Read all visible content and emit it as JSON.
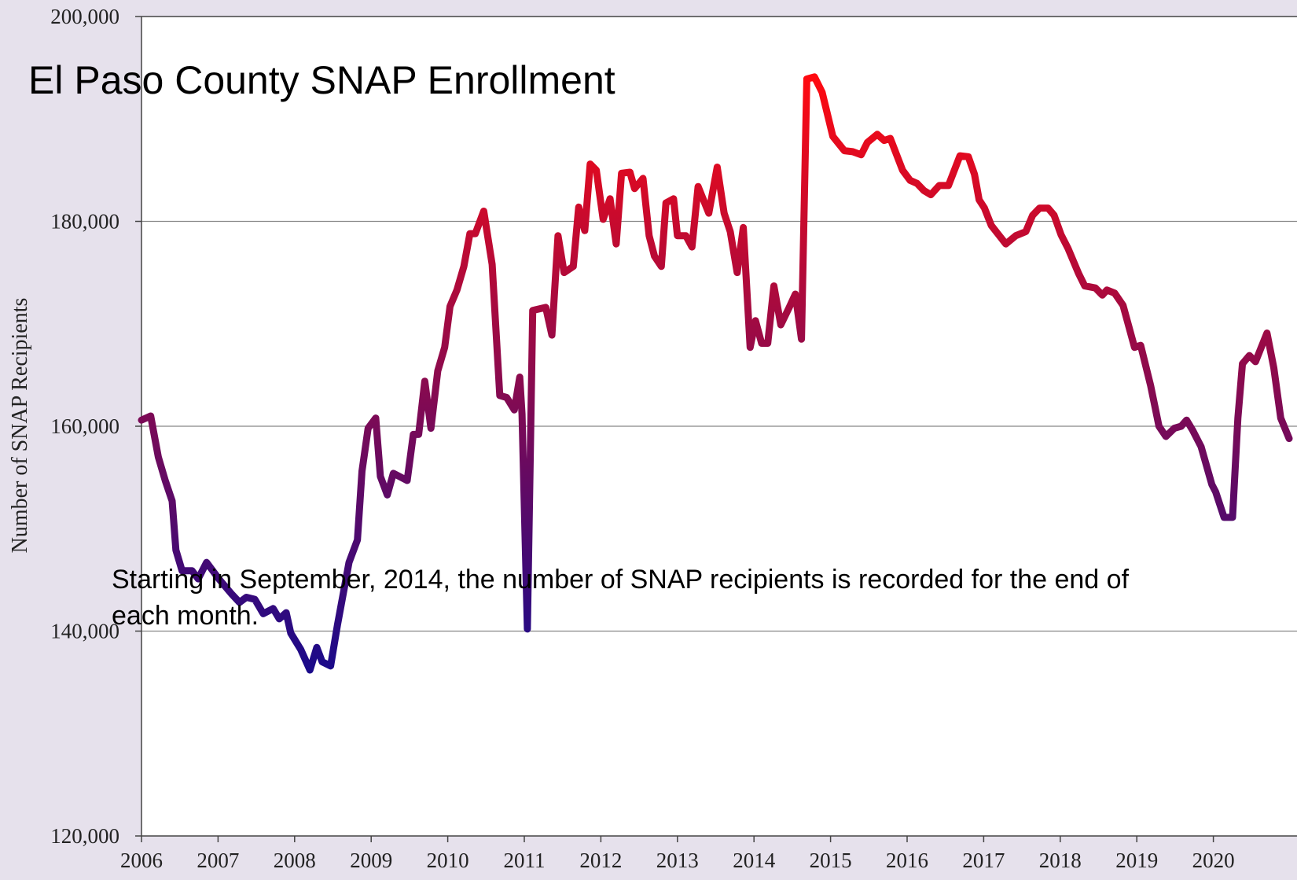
{
  "chart_data": {
    "type": "line",
    "title": "El Paso County SNAP Enrollment",
    "y_label": "Number of SNAP Recipients",
    "annotation": [
      "Starting in September, 2014, the number of SNAP recipients is recorded for the end of",
      "each month."
    ],
    "xlim": [
      2006,
      2021
    ],
    "xticks": [
      2006,
      2007,
      2008,
      2009,
      2010,
      2011,
      2012,
      2013,
      2014,
      2015,
      2016,
      2017,
      2018,
      2019,
      2020
    ],
    "ylim": [
      120000,
      200000
    ],
    "yticks": [
      {
        "value": 120000,
        "label": "120,000"
      },
      {
        "value": 140000,
        "label": "140,000"
      },
      {
        "value": 160000,
        "label": "160,000"
      },
      {
        "value": 180000,
        "label": "180,000"
      },
      {
        "value": 200000,
        "label": "200,000"
      }
    ],
    "grid": true,
    "gradient_colors": [
      "#1a0a8a",
      "#ff0a10"
    ],
    "series": [
      {
        "name": "SNAP recipients",
        "x": [
          2006.0,
          2006.12,
          2006.22,
          2006.31,
          2006.4,
          2006.45,
          2006.53,
          2006.66,
          2006.74,
          2006.85,
          2007.01,
          2007.18,
          2007.28,
          2007.37,
          2007.48,
          2007.59,
          2007.72,
          2007.8,
          2007.89,
          2007.95,
          2008.08,
          2008.2,
          2008.29,
          2008.36,
          2008.47,
          2008.56,
          2008.71,
          2008.82,
          2008.88,
          2008.96,
          2009.06,
          2009.12,
          2009.21,
          2009.29,
          2009.47,
          2009.55,
          2009.62,
          2009.7,
          2009.78,
          2009.87,
          2009.96,
          2010.03,
          2010.12,
          2010.21,
          2010.29,
          2010.36,
          2010.47,
          2010.58,
          2010.68,
          2010.77,
          2010.87,
          2010.94,
          2010.97,
          2011.04,
          2011.11,
          2011.28,
          2011.36,
          2011.44,
          2011.52,
          2011.64,
          2011.71,
          2011.79,
          2011.86,
          2011.94,
          2012.03,
          2012.12,
          2012.2,
          2012.27,
          2012.38,
          2012.44,
          2012.55,
          2012.63,
          2012.7,
          2012.79,
          2012.85,
          2012.95,
          2013.0,
          2013.11,
          2013.19,
          2013.27,
          2013.41,
          2013.52,
          2013.61,
          2013.69,
          2013.78,
          2013.86,
          2013.95,
          2014.02,
          2014.1,
          2014.18,
          2014.26,
          2014.35,
          2014.46,
          2014.54,
          2014.62,
          2014.69,
          2014.79,
          2014.89,
          2015.03,
          2015.18,
          2015.29,
          2015.4,
          2015.48,
          2015.61,
          2015.7,
          2015.78,
          2015.94,
          2016.04,
          2016.13,
          2016.22,
          2016.31,
          2016.42,
          2016.54,
          2016.69,
          2016.8,
          2016.88,
          2016.94,
          2017.01,
          2017.1,
          2017.29,
          2017.42,
          2017.55,
          2017.64,
          2017.73,
          2017.84,
          2017.92,
          2018.01,
          2018.1,
          2018.24,
          2018.32,
          2018.46,
          2018.55,
          2018.61,
          2018.71,
          2018.82,
          2018.97,
          2019.05,
          2019.18,
          2019.29,
          2019.38,
          2019.49,
          2019.58,
          2019.65,
          2019.73,
          2019.84,
          2019.98,
          2020.03,
          2020.14,
          2020.25,
          2020.32,
          2020.38,
          2020.47,
          2020.55,
          2020.7,
          2020.79,
          2020.88,
          2020.99
        ],
        "values": [
          160600,
          161000,
          157000,
          154700,
          152700,
          147900,
          145900,
          145900,
          145100,
          146700,
          145100,
          143600,
          142800,
          143300,
          143100,
          141700,
          142200,
          141200,
          141800,
          139800,
          138200,
          136200,
          138400,
          137000,
          136600,
          140600,
          146700,
          148900,
          155600,
          159800,
          160800,
          155100,
          153300,
          155400,
          154700,
          159200,
          159200,
          164400,
          159800,
          165400,
          167700,
          171700,
          173300,
          175600,
          178800,
          178800,
          181000,
          175800,
          163000,
          162800,
          161600,
          164800,
          161200,
          140200,
          171300,
          171600,
          168900,
          178600,
          175000,
          175600,
          181400,
          179100,
          185600,
          185000,
          180200,
          182200,
          177800,
          184700,
          184800,
          183200,
          184200,
          178600,
          176600,
          175600,
          181800,
          182200,
          178600,
          178600,
          177500,
          183400,
          180800,
          185300,
          180800,
          179000,
          175000,
          179400,
          167700,
          170300,
          168100,
          168100,
          173700,
          169900,
          171600,
          172900,
          168500,
          193900,
          194100,
          192600,
          188300,
          186900,
          186800,
          186500,
          187700,
          188500,
          187900,
          188100,
          185000,
          184000,
          183700,
          183000,
          182600,
          183500,
          183500,
          186400,
          186300,
          184600,
          182100,
          181300,
          179600,
          177800,
          178600,
          179000,
          180600,
          181300,
          181300,
          180600,
          178700,
          177400,
          174900,
          173700,
          173500,
          172800,
          173300,
          173000,
          171800,
          167700,
          167900,
          164000,
          160000,
          159000,
          159800,
          160000,
          160600,
          159600,
          158000,
          154300,
          153600,
          151100,
          151100,
          160800,
          166100,
          166900,
          166300,
          169100,
          165700,
          160800,
          158800
        ]
      }
    ]
  }
}
